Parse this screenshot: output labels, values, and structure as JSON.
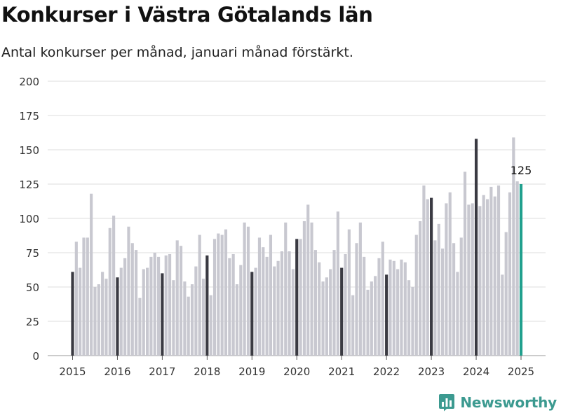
{
  "title": "Konkurser i Västra Götalands län",
  "subtitle": "Antal konkurser per månad, januari månad förstärkt.",
  "brand": {
    "name": "Newsworthy",
    "icon": "bar-chart-icon",
    "color": "#3c9a90"
  },
  "colors": {
    "bar": "#c8c8d0",
    "january": "#3a3a42",
    "latest": "#21a08e",
    "grid": "#dddddd"
  },
  "chart_data": {
    "type": "bar",
    "ylim": [
      0,
      200
    ],
    "yticks": [
      0,
      25,
      50,
      75,
      100,
      125,
      150,
      175,
      200
    ],
    "xticks": [
      "2015",
      "2016",
      "2017",
      "2018",
      "2019",
      "2020",
      "2021",
      "2022",
      "2023",
      "2024",
      "2025"
    ],
    "grid": true,
    "highlight": "january",
    "start": "2015-01",
    "end": "2025-01",
    "last_label": "125",
    "values": [
      61,
      83,
      64,
      86,
      86,
      118,
      50,
      52,
      61,
      56,
      93,
      102,
      57,
      64,
      71,
      94,
      82,
      77,
      42,
      63,
      64,
      72,
      75,
      72,
      60,
      73,
      74,
      55,
      84,
      80,
      54,
      43,
      52,
      65,
      88,
      56,
      73,
      44,
      85,
      89,
      88,
      92,
      71,
      74,
      52,
      66,
      97,
      94,
      61,
      64,
      86,
      79,
      72,
      88,
      65,
      69,
      76,
      97,
      76,
      63,
      85,
      85,
      98,
      110,
      97,
      77,
      68,
      54,
      57,
      63,
      77,
      105,
      64,
      74,
      92,
      44,
      82,
      97,
      72,
      48,
      54,
      58,
      71,
      83,
      59,
      70,
      69,
      63,
      70,
      68,
      55,
      50,
      88,
      98,
      124,
      114,
      115,
      84,
      96,
      78,
      111,
      119,
      82,
      61,
      86,
      134,
      110,
      111,
      158,
      109,
      117,
      114,
      123,
      116,
      124,
      59,
      90,
      119,
      159,
      127,
      125
    ]
  }
}
